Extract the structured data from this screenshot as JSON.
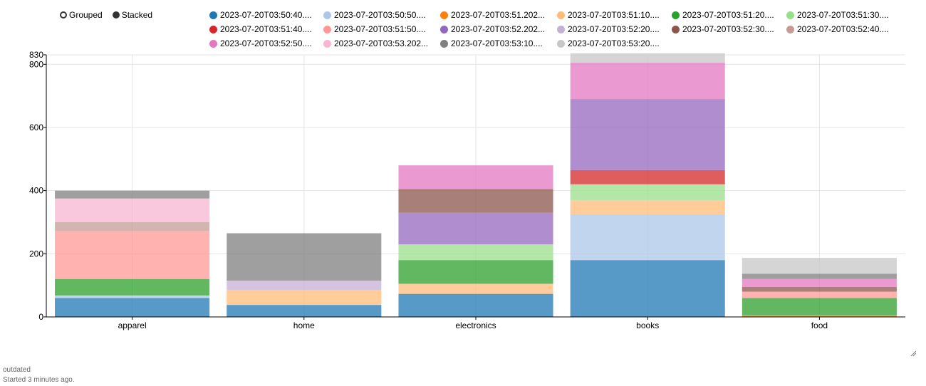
{
  "mode_toggle": {
    "grouped_label": "Grouped",
    "stacked_label": "Stacked",
    "selected": "Stacked"
  },
  "status": {
    "line1": "outdated",
    "line2": "Started 3 minutes ago."
  },
  "chart_data": {
    "type": "bar",
    "stacked": true,
    "categories": [
      "apparel",
      "home",
      "electronics",
      "books",
      "food"
    ],
    "ylim": [
      0,
      830
    ],
    "yticks": [
      0,
      200,
      400,
      600,
      800,
      830
    ],
    "grid": true,
    "legend_position": "top",
    "series": [
      {
        "name": "2023-07-20T03:50:40....",
        "color": "#1f77b4",
        "values": [
          60,
          38,
          73,
          180,
          0
        ]
      },
      {
        "name": "2023-07-20T03:50:50....",
        "color": "#aec7e8",
        "values": [
          8,
          0,
          0,
          145,
          0
        ]
      },
      {
        "name": "2023-07-20T03:51.202...",
        "color": "#ff7f0e",
        "values": [
          0,
          0,
          0,
          0,
          5
        ]
      },
      {
        "name": "2023-07-20T03:51:10....",
        "color": "#ffbb78",
        "values": [
          0,
          47,
          32,
          45,
          0
        ]
      },
      {
        "name": "2023-07-20T03:51:20....",
        "color": "#2ca02c",
        "values": [
          52,
          0,
          75,
          0,
          55
        ]
      },
      {
        "name": "2023-07-20T03:51:30....",
        "color": "#98df8a",
        "values": [
          0,
          0,
          50,
          50,
          0
        ]
      },
      {
        "name": "2023-07-20T03:51:40....",
        "color": "#d62728",
        "values": [
          0,
          0,
          0,
          45,
          0
        ]
      },
      {
        "name": "2023-07-20T03:51:50....",
        "color": "#ff9896",
        "values": [
          152,
          0,
          0,
          0,
          20
        ]
      },
      {
        "name": "2023-07-20T03:52.202...",
        "color": "#9467bd",
        "values": [
          0,
          0,
          100,
          225,
          0
        ]
      },
      {
        "name": "2023-07-20T03:52:20....",
        "color": "#c5b0d5",
        "values": [
          0,
          30,
          0,
          0,
          0
        ]
      },
      {
        "name": "2023-07-20T03:52:30....",
        "color": "#8c564b",
        "values": [
          0,
          0,
          75,
          0,
          15
        ]
      },
      {
        "name": "2023-07-20T03:52:40....",
        "color": "#c49c94",
        "values": [
          28,
          0,
          0,
          0,
          0
        ]
      },
      {
        "name": "2023-07-20T03:52:50....",
        "color": "#e377c2",
        "values": [
          0,
          0,
          75,
          115,
          25
        ]
      },
      {
        "name": "2023-07-20T03:53.202...",
        "color": "#f7b6d2",
        "values": [
          75,
          0,
          0,
          0,
          0
        ]
      },
      {
        "name": "2023-07-20T03:53:10....",
        "color": "#7f7f7f",
        "values": [
          25,
          150,
          0,
          0,
          17
        ]
      },
      {
        "name": "2023-07-20T03:53:20....",
        "color": "#c7c7c7",
        "values": [
          0,
          0,
          0,
          30,
          50
        ]
      }
    ]
  }
}
